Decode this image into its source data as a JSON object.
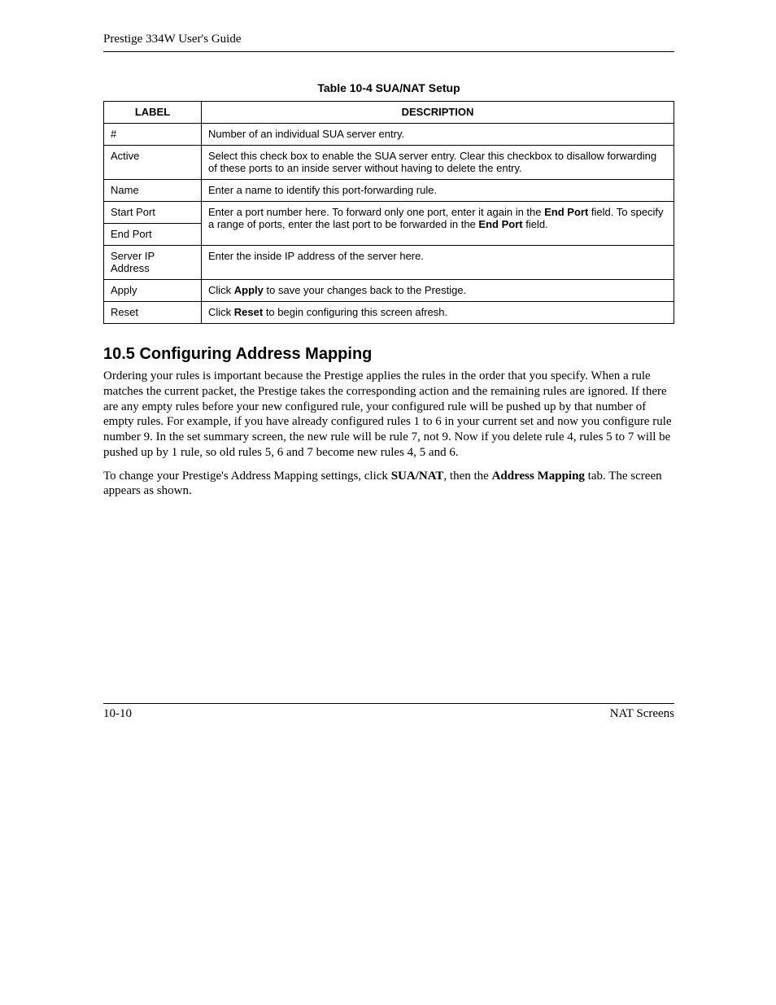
{
  "header": {
    "title": "Prestige 334W User's Guide"
  },
  "table": {
    "caption": "Table 10-4 SUA/NAT Setup",
    "columns": {
      "label": "LABEL",
      "description": "DESCRIPTION"
    },
    "rows": {
      "hash": {
        "label": "#",
        "desc": "Number of an individual SUA server entry."
      },
      "active": {
        "label": "Active",
        "desc": "Select this check box to enable the SUA server entry. Clear this checkbox to disallow forwarding of these ports to an inside server without having to delete the entry."
      },
      "name": {
        "label": "Name",
        "desc": "Enter a name to identify this port-forwarding rule."
      },
      "start": {
        "label": "Start Port"
      },
      "end": {
        "label": "End Port"
      },
      "ports_desc": {
        "line1_pre": "Enter a port number here. To forward only one port, enter it again in the ",
        "line1_b": "End Port",
        "line1_post": " field. To specify a range of ports, enter the last port to be forwarded in the ",
        "line2_b": "End Port",
        "line2_post": " field."
      },
      "server": {
        "label": "Server IP Address",
        "desc": "Enter the inside IP address of the server here."
      },
      "apply": {
        "label": "Apply",
        "pre": "Click ",
        "b": "Apply",
        "post": " to save your changes back to the Prestige."
      },
      "reset": {
        "label": "Reset",
        "pre": "Click ",
        "b": "Reset",
        "post": " to begin configuring this screen afresh."
      }
    }
  },
  "section": {
    "heading": "10.5  Configuring Address Mapping",
    "p1": "Ordering your rules is important because the Prestige applies the rules in the order that you specify. When a rule matches the current packet, the Prestige takes the corresponding action and the remaining rules are ignored. If there are any empty rules before your new configured rule, your configured rule will be pushed up by that number of empty rules. For example, if you have already configured rules 1 to 6 in your current set and now you configure rule number 9. In the set summary screen, the new rule will be rule 7, not 9. Now if you delete rule 4, rules 5 to 7 will be pushed up by 1 rule, so old rules 5, 6 and 7 become new rules 4, 5 and 6.",
    "p2_pre": "To change your Prestige's Address Mapping settings, click ",
    "p2_b1": "SUA/NAT",
    "p2_mid": ", then the ",
    "p2_b2": "Address Mapping",
    "p2_post": " tab.  The screen appears as shown."
  },
  "footer": {
    "left": "10-10",
    "right": "NAT Screens"
  }
}
